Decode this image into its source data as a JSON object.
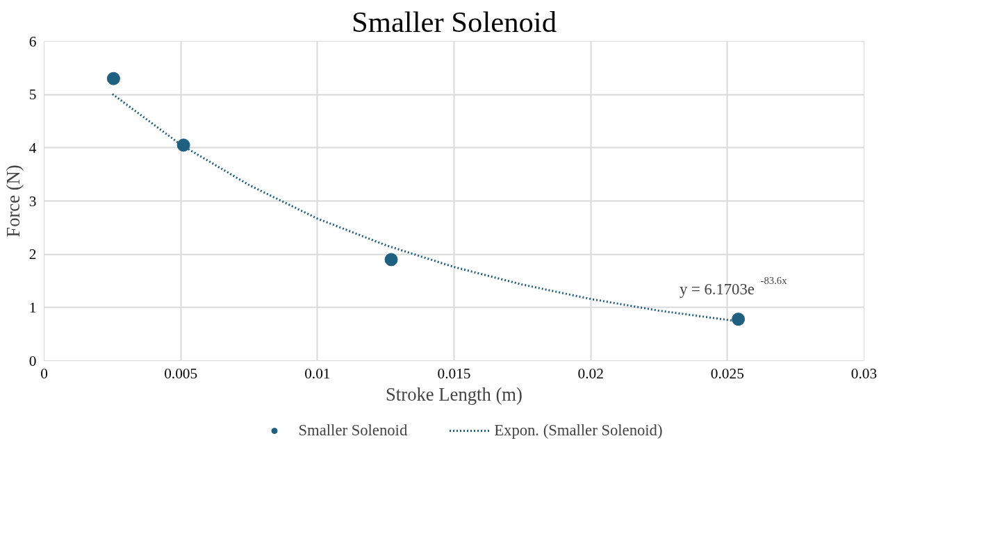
{
  "chart_data": {
    "type": "scatter",
    "title": "Smaller Solenoid",
    "xlabel": "Stroke Length (m)",
    "ylabel": "Force (N)",
    "xlim": [
      0,
      0.03
    ],
    "xticks": [
      0,
      0.005,
      0.01,
      0.015,
      0.02,
      0.025,
      0.03
    ],
    "ylim": [
      0,
      6
    ],
    "yticks": [
      0,
      1,
      2,
      3,
      4,
      5,
      6
    ],
    "grid": true,
    "legend": "bottom",
    "series": [
      {
        "name": "Smaller Solenoid",
        "type": "scatter",
        "marker": "circle",
        "color": "#1f5f7f",
        "x": [
          0.00254,
          0.0051,
          0.0127,
          0.0254
        ],
        "values": [
          5.3,
          4.05,
          1.9,
          0.78
        ]
      },
      {
        "name": "Expon. (Smaller Solenoid)",
        "type": "line",
        "line_style": "dotted",
        "marker": "none",
        "color": "#1f5f7f",
        "x": [
          0.0025,
          0.005,
          0.0075,
          0.01,
          0.0125,
          0.015,
          0.0175,
          0.02,
          0.0225,
          0.0254
        ],
        "values": [
          5.01,
          4.06,
          3.3,
          2.67,
          2.17,
          1.76,
          1.43,
          1.16,
          0.94,
          0.74
        ]
      }
    ],
    "annotations": [
      "y = 6.1703e$^{-83.6x}$"
    ]
  }
}
